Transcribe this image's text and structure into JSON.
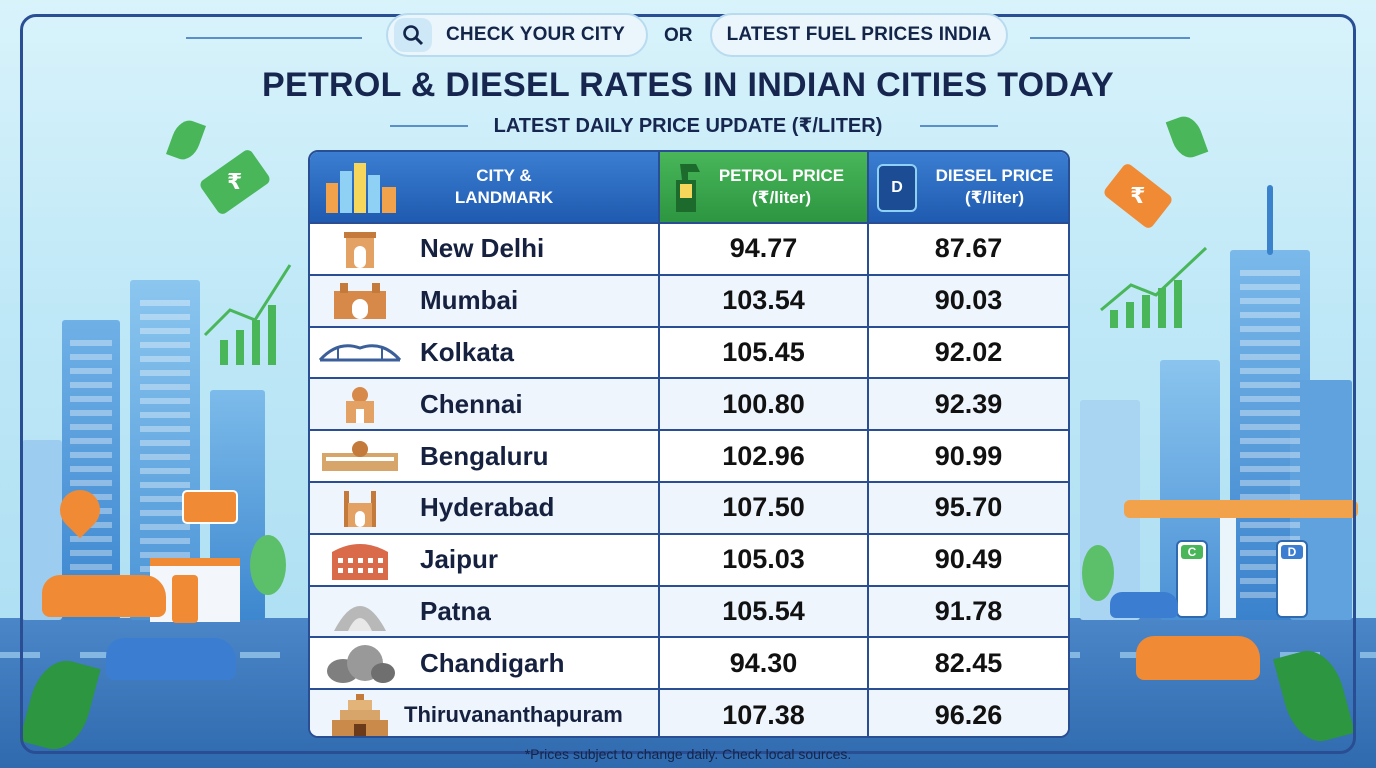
{
  "header": {
    "check_label": "CHECK YOUR CITY",
    "or_label": "OR",
    "latest_label": "LATEST FUEL PRICES INDIA",
    "title": "PETROL & DIESEL RATES IN INDIAN CITIES TODAY",
    "subtitle": "LATEST DAILY PRICE UPDATE (₹/LITER)"
  },
  "table": {
    "col_city": [
      "CITY &",
      "LANDMARK"
    ],
    "col_petrol": [
      "PETROL PRICE",
      "(₹/liter)"
    ],
    "col_diesel": [
      "DIESEL PRICE",
      "(₹/liter)"
    ],
    "rows": [
      {
        "city": "New Delhi",
        "petrol": "94.77",
        "diesel": "87.67"
      },
      {
        "city": "Mumbai",
        "petrol": "103.54",
        "diesel": "90.03"
      },
      {
        "city": "Kolkata",
        "petrol": "105.45",
        "diesel": "92.02"
      },
      {
        "city": "Chennai",
        "petrol": "100.80",
        "diesel": "92.39"
      },
      {
        "city": "Bengaluru",
        "petrol": "102.96",
        "diesel": "90.99"
      },
      {
        "city": "Hyderabad",
        "petrol": "107.50",
        "diesel": "95.70"
      },
      {
        "city": "Jaipur",
        "petrol": "105.03",
        "diesel": "90.49"
      },
      {
        "city": "Patna",
        "petrol": "105.54",
        "diesel": "91.78"
      },
      {
        "city": "Chandigarh",
        "petrol": "94.30",
        "diesel": "82.45"
      },
      {
        "city": "Thiruvananthapuram",
        "petrol": "107.38",
        "diesel": "96.26"
      }
    ]
  },
  "footnote": "*Prices subject to change daily. Check local sources.",
  "tags": {
    "left_symbol": "₹",
    "right_symbol": "₹"
  },
  "pumps": {
    "left_letter": "C",
    "right_letter": "D",
    "header_letter": "D"
  },
  "colors": {
    "navy": "#17264f",
    "petrol_green": "#2c9640",
    "diesel_blue": "#1f5bb0",
    "accent_orange": "#f08a35"
  }
}
